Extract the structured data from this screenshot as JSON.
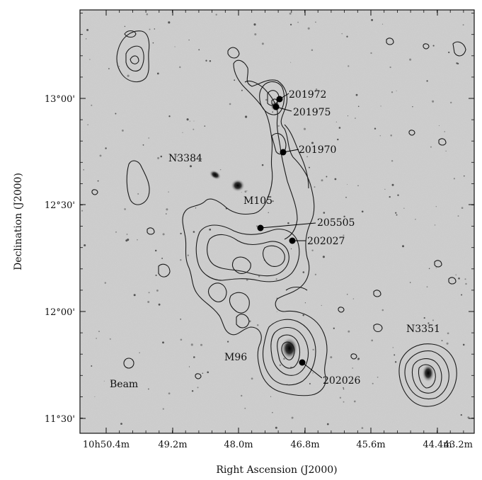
{
  "axes": {
    "x_label": "Right Ascension (J2000)",
    "y_label": "Declination (J2000)",
    "x_ticks": [
      {
        "label": "10h50.4m"
      },
      {
        "label": "49.2m"
      },
      {
        "label": "48.0m"
      },
      {
        "label": "46.8m"
      },
      {
        "label": "45.6m"
      },
      {
        "label": "44.4m"
      },
      {
        "label": "43.2m"
      }
    ],
    "y_ticks": [
      {
        "label": "13°00'"
      },
      {
        "label": "12°30'"
      },
      {
        "label": "12°00'"
      },
      {
        "label": "11°30'"
      }
    ]
  },
  "galaxies": [
    {
      "id": "n3384",
      "label": "N3384"
    },
    {
      "id": "m105",
      "label": "M105"
    },
    {
      "id": "m96",
      "label": "M96"
    },
    {
      "id": "n3351",
      "label": "N3351"
    }
  ],
  "sources": [
    {
      "id": "s201972",
      "label": "201972"
    },
    {
      "id": "s201975",
      "label": "201975"
    },
    {
      "id": "s201970",
      "label": "201970"
    },
    {
      "id": "s205505",
      "label": "205505"
    },
    {
      "id": "s202027",
      "label": "202027"
    },
    {
      "id": "s202026",
      "label": "202026"
    }
  ],
  "beam": {
    "label": "Beam"
  },
  "colors": {
    "background": "#c9c9c9",
    "contour": "#1a1a1a",
    "marker": "#000000"
  }
}
